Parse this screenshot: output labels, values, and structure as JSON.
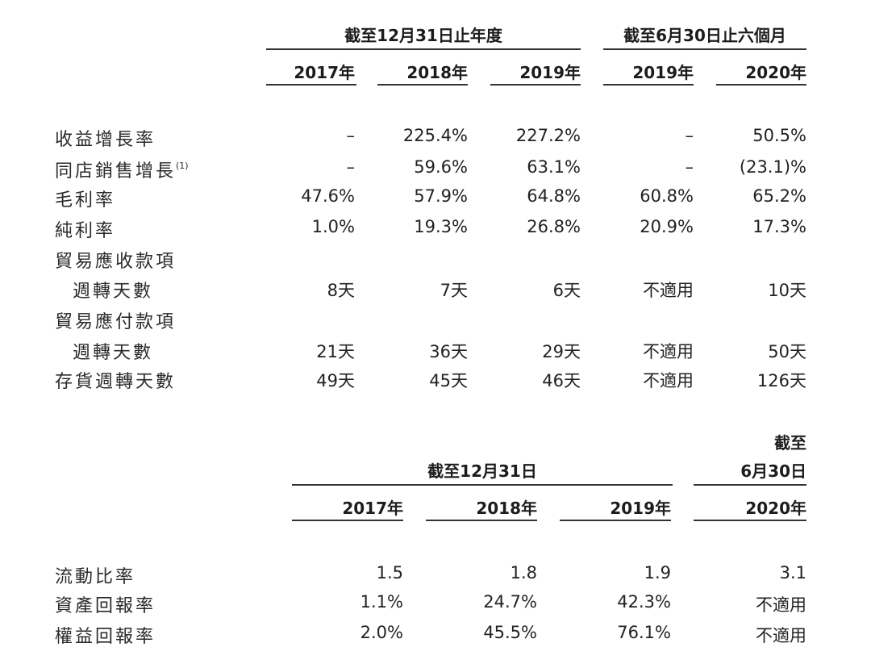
{
  "table1": {
    "group1_header": "截至12月31日止年度",
    "group2_header": "截至6月30日止六個月",
    "columns": [
      "2017年",
      "2018年",
      "2019年",
      "2019年",
      "2020年"
    ],
    "rows": [
      {
        "label": "收益增長率",
        "footnote": "",
        "values": [
          "–",
          "225.4%",
          "227.2%",
          "–",
          "50.5%"
        ]
      },
      {
        "label": "同店銷售增長",
        "footnote": "(1)",
        "values": [
          "–",
          "59.6%",
          "63.1%",
          "–",
          "(23.1)%"
        ]
      },
      {
        "label": "毛利率",
        "footnote": "",
        "values": [
          "47.6%",
          "57.9%",
          "64.8%",
          "60.8%",
          "65.2%"
        ]
      },
      {
        "label": "純利率",
        "footnote": "",
        "values": [
          "1.0%",
          "19.3%",
          "26.8%",
          "20.9%",
          "17.3%"
        ]
      },
      {
        "label": "貿易應收款項",
        "footnote": "",
        "values": [
          "",
          "",
          "",
          "",
          ""
        ]
      },
      {
        "label": "週轉天數",
        "footnote": "",
        "values": [
          "8天",
          "7天",
          "6天",
          "不適用",
          "10天"
        ]
      },
      {
        "label": "貿易應付款項",
        "footnote": "",
        "values": [
          "",
          "",
          "",
          "",
          ""
        ]
      },
      {
        "label": "週轉天數",
        "footnote": "",
        "values": [
          "21天",
          "36天",
          "29天",
          "不適用",
          "50天"
        ]
      },
      {
        "label": "存貨週轉天數",
        "footnote": "",
        "values": [
          "49天",
          "45天",
          "46天",
          "不適用",
          "126天"
        ]
      }
    ]
  },
  "table2": {
    "group1_header": "截至12月31日",
    "group2_header_line1": "截至",
    "group2_header_line2": "6月30日",
    "columns": [
      "2017年",
      "2018年",
      "2019年",
      "2020年"
    ],
    "rows": [
      {
        "label": "流動比率",
        "values": [
          "1.5",
          "1.8",
          "1.9",
          "3.1"
        ]
      },
      {
        "label": "資產回報率",
        "values": [
          "1.1%",
          "24.7%",
          "42.3%",
          "不適用"
        ]
      },
      {
        "label": "權益回報率",
        "values": [
          "2.0%",
          "45.5%",
          "76.1%",
          "不適用"
        ]
      }
    ]
  }
}
